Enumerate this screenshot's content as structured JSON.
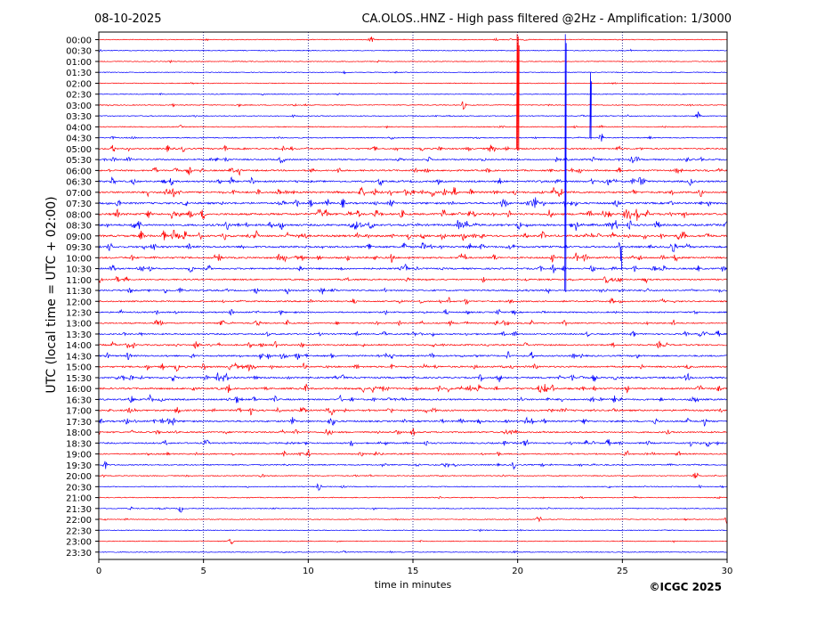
{
  "header": {
    "date": "08-10-2025",
    "title": "CA.OLOS..HNZ - High pass filtered @2Hz - Amplification: 1/3000"
  },
  "footer": {
    "copyright": "©ICGC 2025"
  },
  "colors": {
    "trace_a": "#ff0000",
    "trace_b": "#0000ff",
    "frame": "#000000",
    "grid": "#000080"
  },
  "chart_data": {
    "type": "line",
    "title": "CA.OLOS..HNZ - High pass filtered @2Hz - Amplification: 1/3000",
    "xlabel": "time in minutes",
    "ylabel": "UTC (local time = UTC + 02:00)",
    "xlim": [
      0,
      30
    ],
    "xticks": [
      0,
      5,
      10,
      15,
      20,
      25,
      30
    ],
    "vertical_gridlines_at": [
      5,
      10,
      15,
      20,
      25
    ],
    "rows": [
      "00:00",
      "00:30",
      "01:00",
      "01:30",
      "02:00",
      "02:30",
      "03:00",
      "03:30",
      "04:00",
      "04:30",
      "05:00",
      "05:30",
      "06:00",
      "06:30",
      "07:00",
      "07:30",
      "08:00",
      "08:30",
      "09:00",
      "09:30",
      "10:00",
      "10:30",
      "11:00",
      "11:30",
      "12:00",
      "12:30",
      "13:00",
      "13:30",
      "14:00",
      "14:30",
      "15:00",
      "15:30",
      "16:00",
      "16:30",
      "17:00",
      "17:30",
      "18:00",
      "18:30",
      "19:00",
      "19:30",
      "20:00",
      "20:30",
      "21:00",
      "21:30",
      "22:00",
      "22:30",
      "23:00",
      "23:30"
    ],
    "row_colors": [
      "red",
      "blue"
    ],
    "noise_level": [
      0.2,
      0.2,
      0.15,
      0.15,
      0.15,
      0.2,
      0.3,
      0.3,
      0.35,
      0.5,
      1.0,
      1.1,
      1.2,
      1.4,
      1.6,
      1.6,
      1.8,
      1.8,
      1.8,
      1.6,
      1.4,
      1.3,
      1.0,
      1.0,
      1.0,
      0.9,
      0.9,
      1.0,
      1.1,
      1.2,
      1.3,
      1.4,
      1.4,
      1.3,
      1.3,
      1.3,
      1.1,
      1.1,
      0.8,
      0.7,
      0.4,
      0.3,
      0.3,
      0.3,
      0.2,
      0.2,
      0.2,
      0.2
    ],
    "large_spikes": [
      {
        "row": "05:00",
        "minute": 19.95,
        "amplitude_rows": -10.5
      },
      {
        "row": "05:00",
        "minute": 20.0,
        "amplitude_rows": -10.3
      },
      {
        "row": "11:30",
        "minute": 22.25,
        "amplitude_rows": -23.5
      },
      {
        "row": "04:30",
        "minute": 23.45,
        "amplitude_rows": -6.0
      },
      {
        "row": "09:30",
        "minute": 24.9,
        "amplitude_rows": 1.3
      }
    ],
    "events": [
      {
        "row": "00:00",
        "minute": 13.0
      },
      {
        "row": "03:00",
        "minute": 17.4
      },
      {
        "row": "03:30",
        "minute": 28.6
      },
      {
        "row": "04:30",
        "minute": 24.0
      },
      {
        "row": "05:00",
        "minute": 0.7
      },
      {
        "row": "05:00",
        "minute": 18.7
      },
      {
        "row": "05:30",
        "minute": 8.7
      },
      {
        "row": "06:00",
        "minute": 11.5
      },
      {
        "row": "07:00",
        "minute": 13.9
      },
      {
        "row": "09:00",
        "minute": 6.0
      },
      {
        "row": "10:30",
        "minute": 4.4
      },
      {
        "row": "11:30",
        "minute": 9.0
      },
      {
        "row": "12:00",
        "minute": 16.7
      },
      {
        "row": "13:00",
        "minute": 5.9
      },
      {
        "row": "15:00",
        "minute": 5.0
      },
      {
        "row": "16:00",
        "minute": 9.9
      },
      {
        "row": "16:30",
        "minute": 28.3
      },
      {
        "row": "17:30",
        "minute": 11.2
      },
      {
        "row": "18:00",
        "minute": 15.0
      },
      {
        "row": "18:30",
        "minute": 20.4
      },
      {
        "row": "19:00",
        "minute": 10.0
      },
      {
        "row": "19:00",
        "minute": 25.2
      },
      {
        "row": "19:30",
        "minute": 0.3
      },
      {
        "row": "19:30",
        "minute": 16.6
      },
      {
        "row": "19:30",
        "minute": 19.8
      },
      {
        "row": "20:00",
        "minute": 28.5
      },
      {
        "row": "20:30",
        "minute": 10.5
      },
      {
        "row": "21:30",
        "minute": 3.9
      },
      {
        "row": "22:00",
        "minute": 21.0
      },
      {
        "row": "22:00",
        "minute": 30.0
      },
      {
        "row": "23:00",
        "minute": 6.3
      }
    ]
  }
}
